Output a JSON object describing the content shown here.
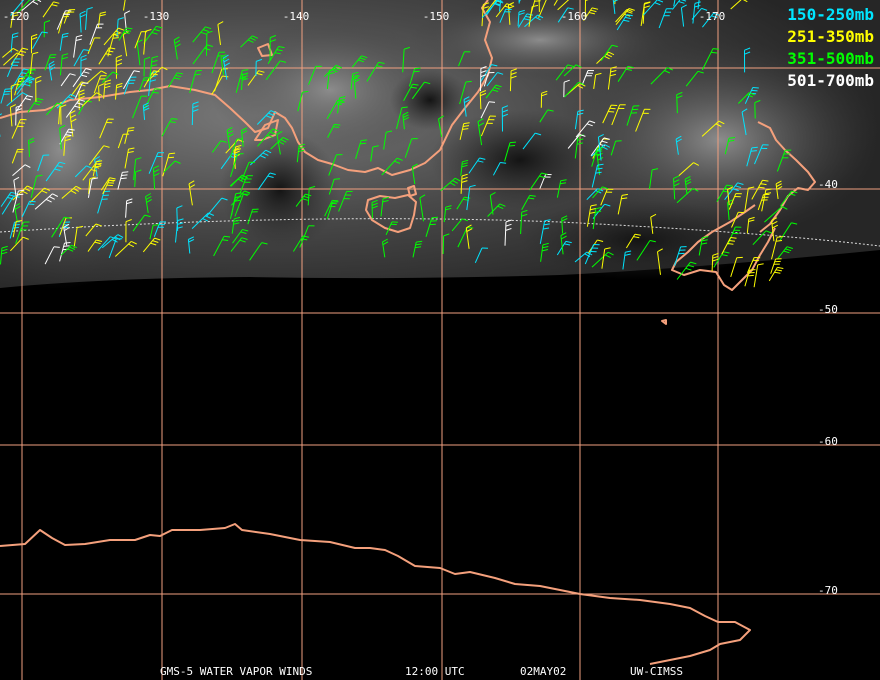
{
  "map": {
    "longitude_labels": [
      "-120",
      "-130",
      "-140",
      "-150",
      "-160",
      "-170"
    ],
    "latitude_labels": [
      "-40",
      "-50",
      "-60",
      "-70"
    ],
    "colors": {
      "grid": "#f0a080",
      "coast": "#f4a07c",
      "background": "#000000"
    }
  },
  "legend": [
    {
      "label": "150-250mb",
      "color": "#00e5ff"
    },
    {
      "label": "251-350mb",
      "color": "#ffff00"
    },
    {
      "label": "351-500mb",
      "color": "#00ff00"
    },
    {
      "label": "501-700mb",
      "color": "#ffffff"
    }
  ],
  "caption": {
    "satellite": "GMS-5 WATER VAPOR WINDS",
    "time": "12:00 UTC",
    "date": "02MAY02",
    "source": "UW-CIMSS"
  }
}
